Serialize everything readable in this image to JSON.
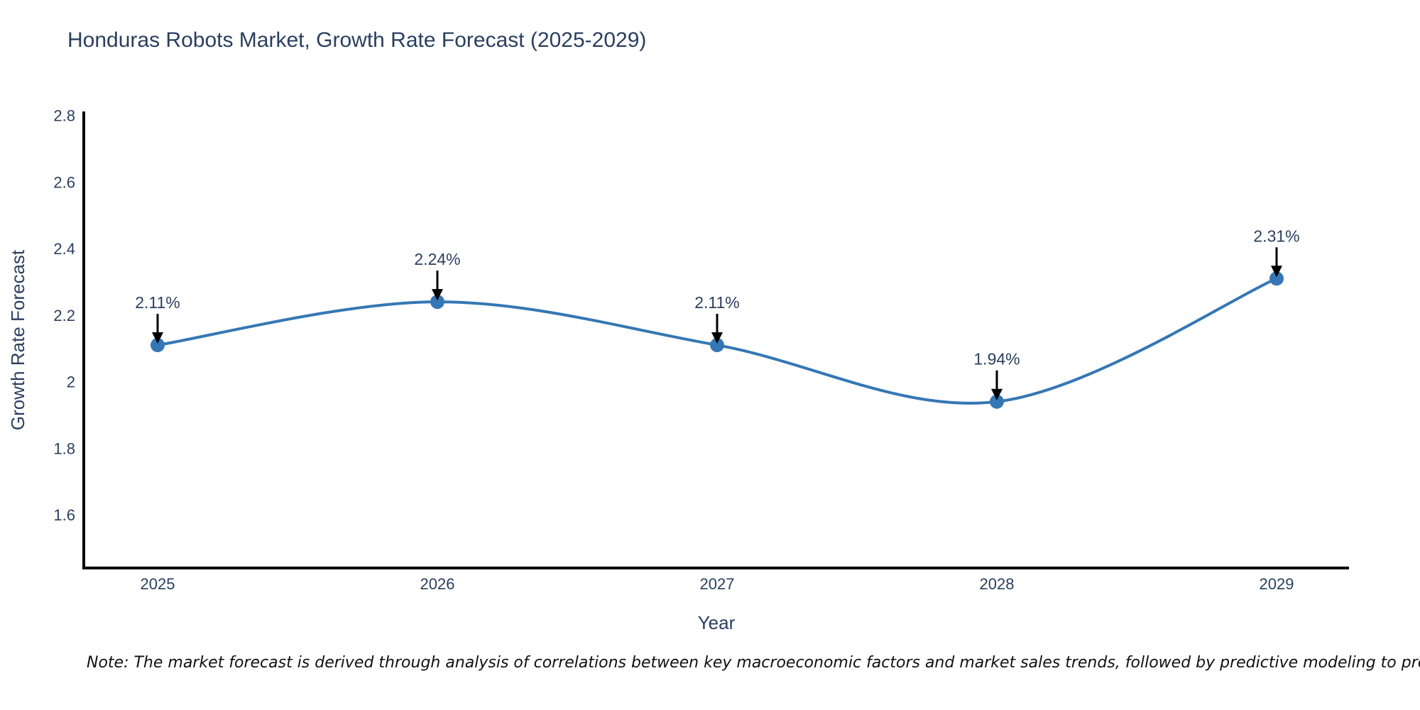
{
  "chart_data": {
    "type": "line",
    "line_shape": "spline",
    "title": "Honduras Robots Market, Growth Rate Forecast (2025-2029)",
    "xlabel": "Year",
    "ylabel": "Growth Rate Forecast",
    "x": [
      2025,
      2026,
      2027,
      2028,
      2029
    ],
    "series": [
      {
        "name": "Growth Rate Forecast",
        "values": [
          2.11,
          2.24,
          2.11,
          1.94,
          2.31
        ]
      }
    ],
    "point_labels": [
      "2.11%",
      "2.24%",
      "2.11%",
      "1.94%",
      "2.31%"
    ],
    "xtick_labels": [
      "2025",
      "2026",
      "2027",
      "2028",
      "2029"
    ],
    "ytick_labels": [
      "2.8",
      "2.6",
      "2.4",
      "2.2",
      "2",
      "1.8",
      "1.6"
    ],
    "ytick_values": [
      2.8,
      2.6,
      2.4,
      2.2,
      2.0,
      1.8,
      1.6
    ],
    "ylim": [
      1.44,
      2.81
    ],
    "grid": false,
    "legend_position": "none",
    "colors": {
      "line": "#3577b4",
      "marker": "#3577b4",
      "annotation_text": "#2a3f5f",
      "annotation_arrow": "#000000",
      "axis_line": "#000000",
      "tick_text": "#2a3f5f",
      "title_text": "#2a3f5f"
    }
  },
  "footnote": {
    "text": "Note: The market forecast is derived through analysis of correlations between key macroeconomic factors and market sales trends, followed by predictive modeling to project future sales"
  }
}
